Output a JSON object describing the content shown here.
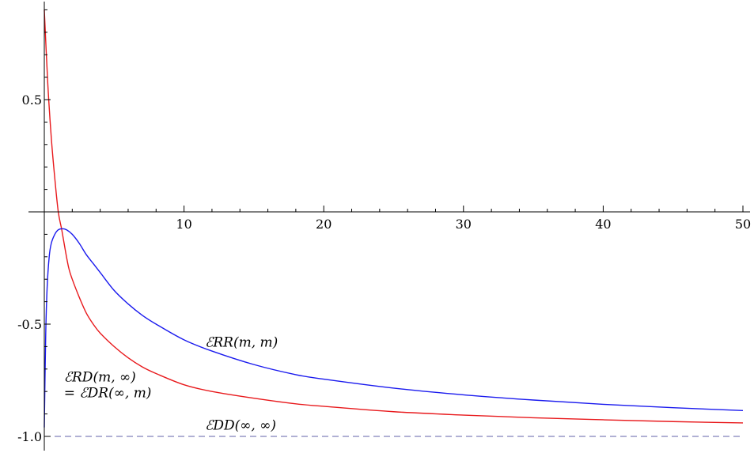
{
  "chart_data": {
    "type": "line",
    "title": "",
    "xlabel": "",
    "ylabel": "",
    "xlim": [
      0,
      50
    ],
    "ylim": [
      -1.05,
      0.95
    ],
    "grid": false,
    "legend": "none",
    "x_ticks": [
      {
        "value": 10,
        "label": "10"
      },
      {
        "value": 20,
        "label": "20"
      },
      {
        "value": 30,
        "label": "30"
      },
      {
        "value": 40,
        "label": "40"
      },
      {
        "value": 50,
        "label": "50"
      }
    ],
    "y_ticks": [
      {
        "value": 0.5,
        "label": "0.5"
      },
      {
        "value": -0.5,
        "label": "-0.5"
      },
      {
        "value": -1.0,
        "label": "-1.0"
      }
    ],
    "series": [
      {
        "color": "#e8191c",
        "dash": "solid",
        "x": [
          0,
          0.25,
          0.5,
          0.75,
          1,
          1.25,
          1.5,
          1.75,
          2,
          2.5,
          3,
          3.5,
          4,
          5,
          6,
          7,
          8,
          10,
          12,
          15,
          18,
          20,
          25,
          30,
          35,
          40,
          45,
          50
        ],
        "y": [
          0.9,
          0.57,
          0.33,
          0.15,
          0.0,
          -0.08,
          -0.17,
          -0.25,
          -0.3,
          -0.38,
          -0.45,
          -0.5,
          -0.54,
          -0.6,
          -0.65,
          -0.69,
          -0.72,
          -0.77,
          -0.8,
          -0.83,
          -0.855,
          -0.866,
          -0.89,
          -0.905,
          -0.917,
          -0.926,
          -0.934,
          -0.94
        ]
      },
      {
        "color": "#1a1aee",
        "dash": "solid",
        "x": [
          0,
          0.1,
          0.2,
          0.35,
          0.5,
          0.75,
          1,
          1.3,
          1.6,
          2,
          2.5,
          3,
          3.5,
          4,
          5,
          6,
          7,
          8,
          10,
          12,
          15,
          18,
          20,
          25,
          30,
          35,
          40,
          45,
          50
        ],
        "y": [
          -0.96,
          -0.55,
          -0.34,
          -0.2,
          -0.14,
          -0.1,
          -0.08,
          -0.075,
          -0.08,
          -0.1,
          -0.14,
          -0.19,
          -0.23,
          -0.27,
          -0.35,
          -0.41,
          -0.46,
          -0.5,
          -0.57,
          -0.62,
          -0.68,
          -0.725,
          -0.745,
          -0.785,
          -0.815,
          -0.838,
          -0.857,
          -0.872,
          -0.885
        ]
      },
      {
        "color": "#6060a8",
        "dash": "dashed",
        "x": [
          0,
          50
        ],
        "y": [
          -1.0,
          -1.0
        ]
      }
    ],
    "annotations": [
      {
        "text": "ℰRR(m, m)",
        "x": 11.5,
        "y": -0.6
      },
      {
        "text": "ℰRD(m, ∞)",
        "x": 1.4,
        "y": -0.755
      },
      {
        "text": "= ℰDR(∞, m)",
        "x": 1.4,
        "y": -0.825
      },
      {
        "text": "ℰDD(∞, ∞)",
        "x": 11.5,
        "y": -0.97
      }
    ]
  }
}
